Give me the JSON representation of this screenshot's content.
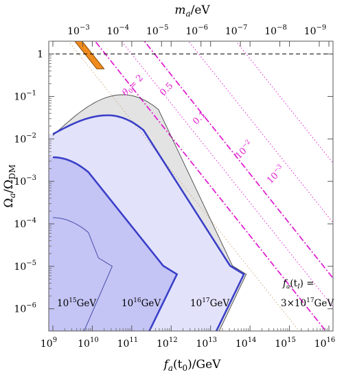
{
  "chart_data": {
    "type": "line",
    "x_axis": {
      "label_main": "f",
      "label_sub": "a",
      "label_rest": "(t",
      "label_sub2": "0",
      "label_end": ")/GeV",
      "scale": "log",
      "range": [
        1000000000.0,
        1e+16
      ],
      "ticks": [
        {
          "base": "10",
          "exp": "9"
        },
        {
          "base": "10",
          "exp": "10"
        },
        {
          "base": "10",
          "exp": "11"
        },
        {
          "base": "10",
          "exp": "12"
        },
        {
          "base": "10",
          "exp": "13"
        },
        {
          "base": "10",
          "exp": "14"
        },
        {
          "base": "10",
          "exp": "15"
        },
        {
          "base": "10",
          "exp": "16"
        }
      ]
    },
    "top_axis": {
      "label_main": "m",
      "label_sub": "a",
      "label_end": "/eV",
      "scale": "log",
      "ticks": [
        {
          "base": "10",
          "exp": "−3",
          "v": 0.001
        },
        {
          "base": "10",
          "exp": "−4",
          "v": 0.0001
        },
        {
          "base": "10",
          "exp": "−5",
          "v": 1e-05
        },
        {
          "base": "10",
          "exp": "−6",
          "v": 1e-06
        },
        {
          "base": "10",
          "exp": "−7",
          "v": 1e-07
        },
        {
          "base": "10",
          "exp": "−8",
          "v": 1e-08
        },
        {
          "base": "10",
          "exp": "−9",
          "v": 1e-09
        }
      ]
    },
    "y_axis": {
      "label_main": "Ω",
      "label_sub": "a",
      "label_mid": "/Ω",
      "label_sub2": "DM",
      "scale": "log",
      "range": [
        3e-07,
        2
      ],
      "ticks": [
        {
          "base": "1",
          "exp": "",
          "v": 1
        },
        {
          "base": "10",
          "exp": "−1",
          "v": 0.1
        },
        {
          "base": "10",
          "exp": "−2",
          "v": 0.01
        },
        {
          "base": "10",
          "exp": "−3",
          "v": 0.001
        },
        {
          "base": "10",
          "exp": "−4",
          "v": 0.0001
        },
        {
          "base": "10",
          "exp": "−5",
          "v": 1e-05
        },
        {
          "base": "10",
          "exp": "−6",
          "v": 1e-06
        }
      ]
    },
    "reference_line": {
      "y": 1,
      "style": "dashed"
    },
    "theta_lines": [
      {
        "label": "θ",
        "label_sub": "0",
        "label_value": "= 2",
        "style": "dashdot",
        "x_at_y1": 21400000000.0
      },
      {
        "label": "0.5",
        "style": "dotted",
        "x_at_y1": 100000000000.0
      },
      {
        "label": "0.1",
        "style": "dashdot",
        "x_at_y1": 380000000000.0
      },
      {
        "label": "10",
        "label_exp": "−2",
        "style": "dotted",
        "x_at_y1": 5000000000000.0
      },
      {
        "label": "10",
        "label_exp": "−3",
        "style": "dotted",
        "x_at_y1": 80000000000000.0
      }
    ],
    "regions": [
      {
        "name": "fa-tI-3e17",
        "label_top": "f",
        "label_top_sub": "a",
        "label_top_mid": "(t",
        "label_top_sub2": "I",
        "label_top_end": ") =",
        "label_bottom": "3×10",
        "label_bottom_exp": "17",
        "label_bottom_end": "GeV",
        "fill": "#e3e3e3",
        "peak": [
          60000000000.0,
          0.11
        ],
        "turnover": [
          80000000000000.0,
          6.5e-06
        ],
        "end_x_bottom": 13000000000000.0
      },
      {
        "name": "fa-tI-1e17",
        "label": "10",
        "label_exp": "17",
        "label_end": "GeV",
        "fill": "#e2e2fb",
        "peak": [
          25000000000.0,
          0.036
        ],
        "turnover": [
          70000000000000.0,
          6.5e-06
        ],
        "end_x_bottom": 11000000000000.0
      },
      {
        "name": "fa-tI-1e16",
        "label": "10",
        "label_exp": "16",
        "label_end": "GeV",
        "fill": "#c4c4f5",
        "peak": [
          1000000000.0,
          0.0037
        ],
        "turnover": [
          1400000000000.0,
          6.5e-06
        ],
        "end_x_bottom": 220000000000.0
      },
      {
        "name": "fa-tI-1e15",
        "label": "10",
        "label_exp": "15",
        "label_end": "GeV",
        "peak": [
          1000000000.0,
          0.00014
        ],
        "turnover": [
          32000000000.0,
          1e-05
        ],
        "end_x_bottom": 5000000000.0
      }
    ],
    "excluded_band": {
      "fill": "#f08c1e",
      "x_at_y1_left": 6500000000.0,
      "x_at_y1_right": 10000000000.0
    }
  }
}
